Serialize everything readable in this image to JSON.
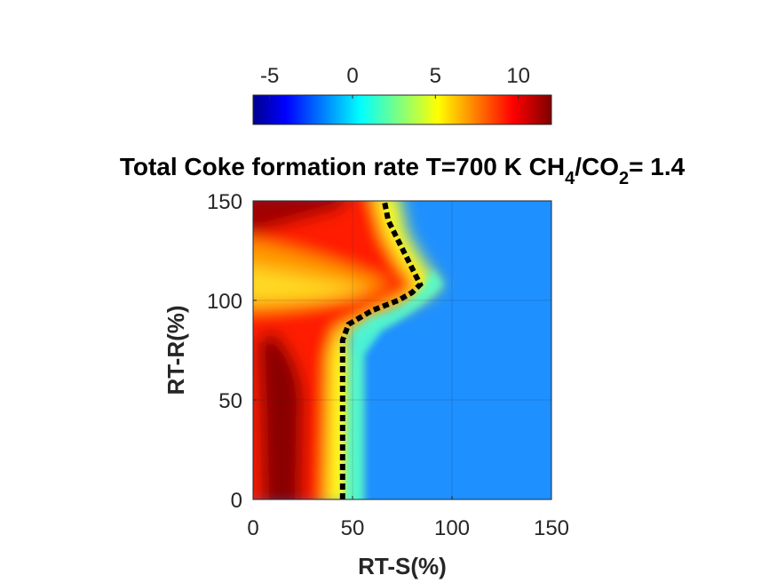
{
  "chart_data": {
    "type": "heatmap",
    "title": {
      "prefix": "Total Coke formation rate T=700 K CH",
      "sub1": "4",
      "mid": "/CO",
      "sub2": "2",
      "suffix": "= 1.4"
    },
    "xlabel": "RT-S(%)",
    "ylabel": "RT-R(%)",
    "xlim": [
      0,
      150
    ],
    "ylim": [
      0,
      150
    ],
    "xticks": [
      0,
      50,
      100,
      150
    ],
    "yticks": [
      0,
      50,
      100,
      150
    ],
    "grid": true,
    "colormap": "jet",
    "colorbar": {
      "location": "top",
      "range": [
        -6,
        12
      ],
      "ticks": [
        -5,
        0,
        5,
        10
      ]
    },
    "contour_zero": {
      "style": "dotted",
      "color": "#000000",
      "points": [
        [
          45,
          0
        ],
        [
          45,
          40
        ],
        [
          45,
          80
        ],
        [
          48,
          88
        ],
        [
          60,
          95
        ],
        [
          73,
          100
        ],
        [
          80,
          104
        ],
        [
          84,
          108
        ],
        [
          79,
          118
        ],
        [
          73,
          130
        ],
        [
          68,
          140
        ],
        [
          66,
          150
        ]
      ]
    }
  }
}
